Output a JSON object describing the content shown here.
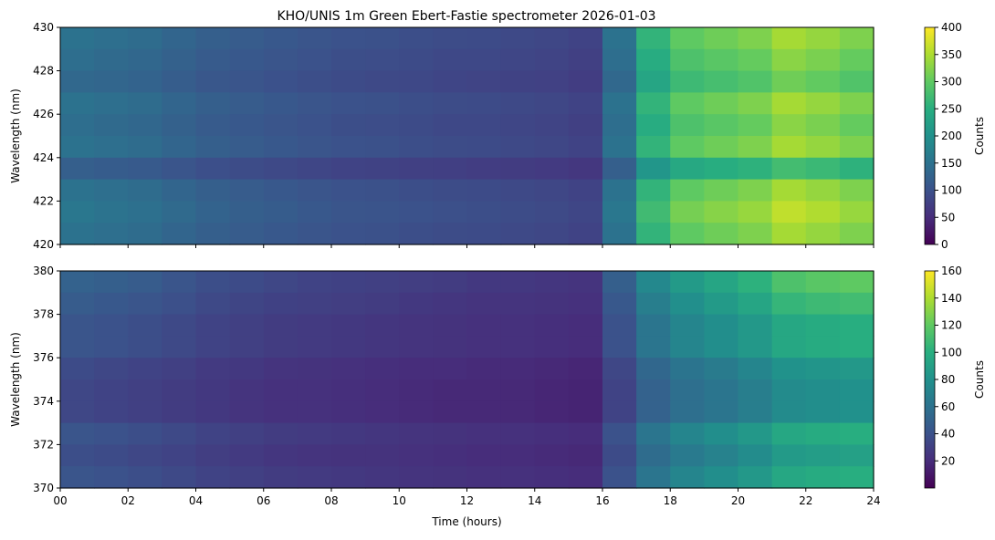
{
  "chart_data": [
    {
      "type": "heatmap",
      "title": "KHO/UNIS 1m Green Ebert-Fastie spectrometer 2026-01-03",
      "xlabel": "",
      "ylabel": "Wavelength (nm)",
      "xlim": [
        0,
        24
      ],
      "ylim": [
        420,
        430
      ],
      "x_ticks": [
        "00",
        "02",
        "04",
        "06",
        "08",
        "10",
        "12",
        "14",
        "16",
        "18",
        "20",
        "22",
        "24"
      ],
      "y_ticks": [
        "420",
        "422",
        "424",
        "426",
        "428",
        "430"
      ],
      "x_centers_hours": [
        0.5,
        1.5,
        2.5,
        3.5,
        4.5,
        5.5,
        6.5,
        7.5,
        8.5,
        9.5,
        10.5,
        11.5,
        12.5,
        13.5,
        14.5,
        15.5,
        16.5,
        17.5,
        18.5,
        19.5,
        20.5,
        21.5,
        22.5,
        23.5
      ],
      "y_centers_nm": [
        429.5,
        428.5,
        427.5,
        426.5,
        425.5,
        424.5,
        423.5,
        422.5,
        421.5,
        420.5
      ],
      "z": [
        [
          150,
          145,
          140,
          130,
          120,
          115,
          110,
          105,
          100,
          98,
          95,
          92,
          90,
          88,
          85,
          80,
          150,
          260,
          300,
          310,
          320,
          345,
          335,
          320
        ],
        [
          143,
          138,
          133,
          124,
          114,
          109,
          105,
          100,
          95,
          93,
          90,
          87,
          86,
          84,
          81,
          76,
          143,
          247,
          285,
          295,
          304,
          328,
          318,
          304
        ],
        [
          135,
          131,
          126,
          117,
          108,
          104,
          99,
          95,
          90,
          88,
          86,
          83,
          81,
          79,
          77,
          72,
          135,
          234,
          270,
          279,
          288,
          311,
          302,
          288
        ],
        [
          150,
          145,
          140,
          130,
          120,
          115,
          110,
          105,
          100,
          98,
          95,
          92,
          90,
          88,
          85,
          80,
          150,
          260,
          300,
          310,
          320,
          345,
          335,
          320
        ],
        [
          143,
          138,
          133,
          124,
          114,
          109,
          105,
          100,
          95,
          93,
          90,
          87,
          86,
          84,
          81,
          76,
          143,
          247,
          285,
          295,
          304,
          328,
          318,
          304
        ],
        [
          150,
          145,
          140,
          130,
          120,
          115,
          110,
          105,
          100,
          98,
          95,
          92,
          90,
          88,
          85,
          80,
          150,
          260,
          300,
          310,
          320,
          345,
          335,
          320
        ],
        [
          120,
          116,
          112,
          104,
          96,
          92,
          88,
          84,
          80,
          78,
          76,
          74,
          72,
          70,
          68,
          64,
          120,
          208,
          240,
          248,
          256,
          276,
          268,
          256
        ],
        [
          150,
          145,
          140,
          130,
          120,
          115,
          110,
          105,
          100,
          98,
          95,
          92,
          90,
          88,
          85,
          80,
          150,
          260,
          300,
          310,
          320,
          345,
          335,
          320
        ],
        [
          158,
          152,
          147,
          137,
          126,
          121,
          116,
          110,
          105,
          103,
          100,
          97,
          95,
          92,
          89,
          84,
          158,
          273,
          315,
          326,
          336,
          362,
          352,
          336
        ],
        [
          150,
          145,
          140,
          130,
          120,
          115,
          110,
          105,
          100,
          98,
          95,
          92,
          90,
          88,
          85,
          80,
          150,
          260,
          300,
          310,
          320,
          345,
          335,
          320
        ]
      ],
      "colorbar": {
        "label": "Counts",
        "range": [
          0,
          400
        ],
        "ticks": [
          "0",
          "50",
          "100",
          "150",
          "200",
          "250",
          "300",
          "350",
          "400"
        ]
      },
      "colormap": "viridis"
    },
    {
      "type": "heatmap",
      "title": "",
      "xlabel": "Time (hours)",
      "ylabel": "Wavelength (nm)",
      "xlim": [
        0,
        24
      ],
      "ylim": [
        370,
        380
      ],
      "x_ticks": [
        "00",
        "02",
        "04",
        "06",
        "08",
        "10",
        "12",
        "14",
        "16",
        "18",
        "20",
        "22",
        "24"
      ],
      "y_ticks": [
        "370",
        "372",
        "374",
        "376",
        "378",
        "380"
      ],
      "x_centers_hours": [
        0.5,
        1.5,
        2.5,
        3.5,
        4.5,
        5.5,
        6.5,
        7.5,
        8.5,
        9.5,
        10.5,
        11.5,
        12.5,
        13.5,
        14.5,
        15.5,
        16.5,
        17.5,
        18.5,
        19.5,
        20.5,
        21.5,
        22.5,
        23.5
      ],
      "y_centers_nm": [
        379.5,
        378.5,
        377.5,
        376.5,
        375.5,
        374.5,
        373.5,
        372.5,
        371.5,
        370.5
      ],
      "z": [
        [
          50,
          48,
          46,
          42,
          38,
          36,
          34,
          32,
          31,
          30,
          29,
          28,
          26,
          26,
          25,
          24,
          48,
          74,
          86,
          94,
          102,
          114,
          118,
          120
        ],
        [
          46,
          44,
          42,
          39,
          35,
          33,
          31,
          30,
          29,
          28,
          26,
          25,
          24,
          24,
          23,
          22,
          44,
          68,
          79,
          86,
          94,
          105,
          108,
          110
        ],
        [
          42,
          40,
          38,
          35,
          32,
          30,
          28,
          27,
          26,
          25,
          24,
          23,
          22,
          22,
          21,
          20,
          40,
          62,
          72,
          78,
          85,
          95,
          98,
          100
        ],
        [
          42,
          40,
          38,
          35,
          32,
          30,
          28,
          27,
          26,
          25,
          24,
          23,
          22,
          22,
          21,
          20,
          40,
          62,
          72,
          78,
          85,
          95,
          98,
          100
        ],
        [
          36,
          34,
          32,
          30,
          27,
          26,
          24,
          23,
          22,
          21,
          20,
          20,
          19,
          19,
          18,
          17,
          34,
          53,
          61,
          66,
          72,
          81,
          83,
          85
        ],
        [
          34,
          32,
          30,
          28,
          26,
          24,
          22,
          22,
          21,
          20,
          19,
          18,
          18,
          18,
          17,
          16,
          32,
          50,
          58,
          62,
          68,
          76,
          78,
          80
        ],
        [
          34,
          32,
          30,
          28,
          26,
          24,
          22,
          22,
          21,
          20,
          19,
          18,
          18,
          18,
          17,
          16,
          32,
          50,
          58,
          62,
          68,
          76,
          78,
          80
        ],
        [
          42,
          40,
          38,
          35,
          32,
          30,
          28,
          27,
          26,
          25,
          24,
          23,
          22,
          22,
          21,
          20,
          40,
          62,
          72,
          78,
          85,
          95,
          98,
          100
        ],
        [
          38,
          36,
          34,
          32,
          29,
          27,
          25,
          24,
          23,
          23,
          22,
          21,
          20,
          20,
          19,
          18,
          36,
          56,
          65,
          70,
          77,
          86,
          88,
          90
        ],
        [
          42,
          40,
          38,
          35,
          32,
          30,
          28,
          27,
          26,
          25,
          24,
          23,
          22,
          22,
          21,
          20,
          40,
          62,
          72,
          78,
          85,
          95,
          98,
          100
        ]
      ],
      "colorbar": {
        "label": "Counts",
        "range": [
          0,
          160
        ],
        "ticks": [
          "20",
          "40",
          "60",
          "80",
          "100",
          "120",
          "140",
          "160"
        ]
      },
      "colormap": "viridis"
    }
  ]
}
